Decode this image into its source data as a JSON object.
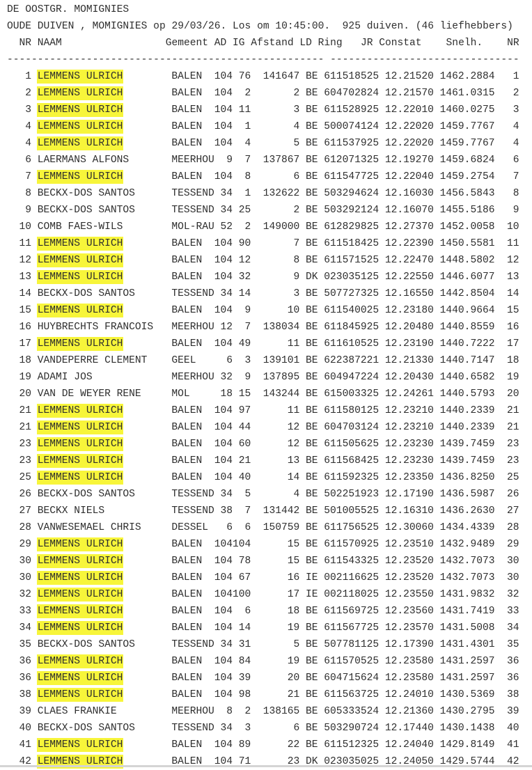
{
  "title": "DE OOSTGR. MOMIGNIES",
  "subtitle": "OUDE DUIVEN , MOMIGNIES op 29/03/26. Los om 10:45:00.  925 duiven. (46 liefhebbers)",
  "header": "  NR NAAM                 Gemeent AD IG Afstand LD Ring   JR Constat    Snelh.    NR",
  "separator": "---------------------------------------------------- -------------------------------",
  "highlight_color": "#f7f53a",
  "columns": [
    "NR",
    "NAAM",
    "Gemeent",
    "AD",
    "IG",
    "Afstand",
    "LD",
    "Ring",
    "Constat",
    "Snelh.",
    "NR"
  ],
  "rows": [
    [
      "1",
      "LEMMENS ULRICH",
      "BALEN",
      "104",
      "76",
      "141647",
      "BE",
      "611518525",
      "12.21520",
      "1462.2884",
      "1",
      true
    ],
    [
      "2",
      "LEMMENS ULRICH",
      "BALEN",
      "104",
      "2",
      "2",
      "BE",
      "604702824",
      "12.21570",
      "1461.0315",
      "2",
      true
    ],
    [
      "3",
      "LEMMENS ULRICH",
      "BALEN",
      "104",
      "11",
      "3",
      "BE",
      "611528925",
      "12.22010",
      "1460.0275",
      "3",
      true
    ],
    [
      "4",
      "LEMMENS ULRICH",
      "BALEN",
      "104",
      "1",
      "4",
      "BE",
      "500074124",
      "12.22020",
      "1459.7767",
      "4",
      true
    ],
    [
      "4",
      "LEMMENS ULRICH",
      "BALEN",
      "104",
      "4",
      "5",
      "BE",
      "611537925",
      "12.22020",
      "1459.7767",
      "4",
      true
    ],
    [
      "6",
      "LAERMANS ALFONS",
      "MEERHOU",
      "9",
      "7",
      "137867",
      "BE",
      "612071325",
      "12.19270",
      "1459.6824",
      "6",
      false
    ],
    [
      "7",
      "LEMMENS ULRICH",
      "BALEN",
      "104",
      "8",
      "6",
      "BE",
      "611547725",
      "12.22040",
      "1459.2754",
      "7",
      true
    ],
    [
      "8",
      "BECKX-DOS SANTOS",
      "TESSEND",
      "34",
      "1",
      "132622",
      "BE",
      "503294624",
      "12.16030",
      "1456.5843",
      "8",
      false
    ],
    [
      "9",
      "BECKX-DOS SANTOS",
      "TESSEND",
      "34",
      "25",
      "2",
      "BE",
      "503292124",
      "12.16070",
      "1455.5186",
      "9",
      false
    ],
    [
      "10",
      "COMB FAES-WILS",
      "MOL-RAU",
      "52",
      "2",
      "149000",
      "BE",
      "612829825",
      "12.27370",
      "1452.0058",
      "10",
      false
    ],
    [
      "11",
      "LEMMENS ULRICH",
      "BALEN",
      "104",
      "90",
      "7",
      "BE",
      "611518425",
      "12.22390",
      "1450.5581",
      "11",
      true
    ],
    [
      "12",
      "LEMMENS ULRICH",
      "BALEN",
      "104",
      "12",
      "8",
      "BE",
      "611571525",
      "12.22470",
      "1448.5802",
      "12",
      true
    ],
    [
      "13",
      "LEMMENS ULRICH",
      "BALEN",
      "104",
      "32",
      "9",
      "DK",
      "023035125",
      "12.22550",
      "1446.6077",
      "13",
      true
    ],
    [
      "14",
      "BECKX-DOS SANTOS",
      "TESSEND",
      "34",
      "14",
      "3",
      "BE",
      "507727325",
      "12.16550",
      "1442.8504",
      "14",
      false
    ],
    [
      "15",
      "LEMMENS ULRICH",
      "BALEN",
      "104",
      "9",
      "10",
      "BE",
      "611540025",
      "12.23180",
      "1440.9664",
      "15",
      true
    ],
    [
      "16",
      "HUYBRECHTS FRANCOIS",
      "MEERHOU",
      "12",
      "7",
      "138034",
      "BE",
      "611845925",
      "12.20480",
      "1440.8559",
      "16",
      false
    ],
    [
      "17",
      "LEMMENS ULRICH",
      "BALEN",
      "104",
      "49",
      "11",
      "BE",
      "611610525",
      "12.23190",
      "1440.7222",
      "17",
      true
    ],
    [
      "18",
      "VANDEPERRE CLEMENT",
      "GEEL",
      "6",
      "3",
      "139101",
      "BE",
      "622387221",
      "12.21330",
      "1440.7147",
      "18",
      false
    ],
    [
      "19",
      "ADAMI JOS",
      "MEERHOU",
      "32",
      "9",
      "137895",
      "BE",
      "604947224",
      "12.20430",
      "1440.6582",
      "19",
      false
    ],
    [
      "20",
      "VAN DE WEYER RENE",
      "MOL",
      "18",
      "15",
      "143244",
      "BE",
      "615003325",
      "12.24261",
      "1440.5793",
      "20",
      false
    ],
    [
      "21",
      "LEMMENS ULRICH",
      "BALEN",
      "104",
      "97",
      "11",
      "BE",
      "611580125",
      "12.23210",
      "1440.2339",
      "21",
      true
    ],
    [
      "21",
      "LEMMENS ULRICH",
      "BALEN",
      "104",
      "44",
      "12",
      "BE",
      "604703124",
      "12.23210",
      "1440.2339",
      "21",
      true
    ],
    [
      "23",
      "LEMMENS ULRICH",
      "BALEN",
      "104",
      "60",
      "12",
      "BE",
      "611505625",
      "12.23230",
      "1439.7459",
      "23",
      true
    ],
    [
      "23",
      "LEMMENS ULRICH",
      "BALEN",
      "104",
      "21",
      "13",
      "BE",
      "611568425",
      "12.23230",
      "1439.7459",
      "23",
      true
    ],
    [
      "25",
      "LEMMENS ULRICH",
      "BALEN",
      "104",
      "40",
      "14",
      "BE",
      "611592325",
      "12.23350",
      "1436.8250",
      "25",
      true
    ],
    [
      "26",
      "BECKX-DOS SANTOS",
      "TESSEND",
      "34",
      "5",
      "4",
      "BE",
      "502251923",
      "12.17190",
      "1436.5987",
      "26",
      false
    ],
    [
      "27",
      "BECKX NIELS",
      "TESSEND",
      "38",
      "7",
      "131442",
      "BE",
      "501005525",
      "12.16310",
      "1436.2630",
      "27",
      false
    ],
    [
      "28",
      "VANWESEMAEL CHRIS",
      "DESSEL",
      "6",
      "6",
      "150759",
      "BE",
      "611756525",
      "12.30060",
      "1434.4339",
      "28",
      false
    ],
    [
      "29",
      "LEMMENS ULRICH",
      "BALEN",
      "104",
      "104",
      "15",
      "BE",
      "611570925",
      "12.23510",
      "1432.9489",
      "29",
      true
    ],
    [
      "30",
      "LEMMENS ULRICH",
      "BALEN",
      "104",
      "78",
      "15",
      "BE",
      "611543325",
      "12.23520",
      "1432.7073",
      "30",
      true
    ],
    [
      "30",
      "LEMMENS ULRICH",
      "BALEN",
      "104",
      "67",
      "16",
      "IE",
      "002116625",
      "12.23520",
      "1432.7073",
      "30",
      true
    ],
    [
      "32",
      "LEMMENS ULRICH",
      "BALEN",
      "104",
      "100",
      "17",
      "IE",
      "002118025",
      "12.23550",
      "1431.9832",
      "32",
      true
    ],
    [
      "33",
      "LEMMENS ULRICH",
      "BALEN",
      "104",
      "6",
      "18",
      "BE",
      "611569725",
      "12.23560",
      "1431.7419",
      "33",
      true
    ],
    [
      "34",
      "LEMMENS ULRICH",
      "BALEN",
      "104",
      "14",
      "19",
      "BE",
      "611567725",
      "12.23570",
      "1431.5008",
      "34",
      true
    ],
    [
      "35",
      "BECKX-DOS SANTOS",
      "TESSEND",
      "34",
      "31",
      "5",
      "BE",
      "507781125",
      "12.17390",
      "1431.4301",
      "35",
      false
    ],
    [
      "36",
      "LEMMENS ULRICH",
      "BALEN",
      "104",
      "84",
      "19",
      "BE",
      "611570525",
      "12.23580",
      "1431.2597",
      "36",
      true
    ],
    [
      "36",
      "LEMMENS ULRICH",
      "BALEN",
      "104",
      "39",
      "20",
      "BE",
      "604715624",
      "12.23580",
      "1431.2597",
      "36",
      true
    ],
    [
      "38",
      "LEMMENS ULRICH",
      "BALEN",
      "104",
      "98",
      "21",
      "BE",
      "611563725",
      "12.24010",
      "1430.5369",
      "38",
      true
    ],
    [
      "39",
      "CLAES FRANKIE",
      "MEERHOU",
      "8",
      "2",
      "138165",
      "BE",
      "605333524",
      "12.21360",
      "1430.2795",
      "39",
      false
    ],
    [
      "40",
      "BECKX-DOS SANTOS",
      "TESSEND",
      "34",
      "3",
      "6",
      "BE",
      "503290724",
      "12.17440",
      "1430.1438",
      "40",
      false
    ],
    [
      "41",
      "LEMMENS ULRICH",
      "BALEN",
      "104",
      "89",
      "22",
      "BE",
      "611512325",
      "12.24040",
      "1429.8149",
      "41",
      true
    ],
    [
      "42",
      "LEMMENS ULRICH",
      "BALEN",
      "104",
      "71",
      "23",
      "DK",
      "023035025",
      "12.24050",
      "1429.5744",
      "42",
      true
    ]
  ]
}
